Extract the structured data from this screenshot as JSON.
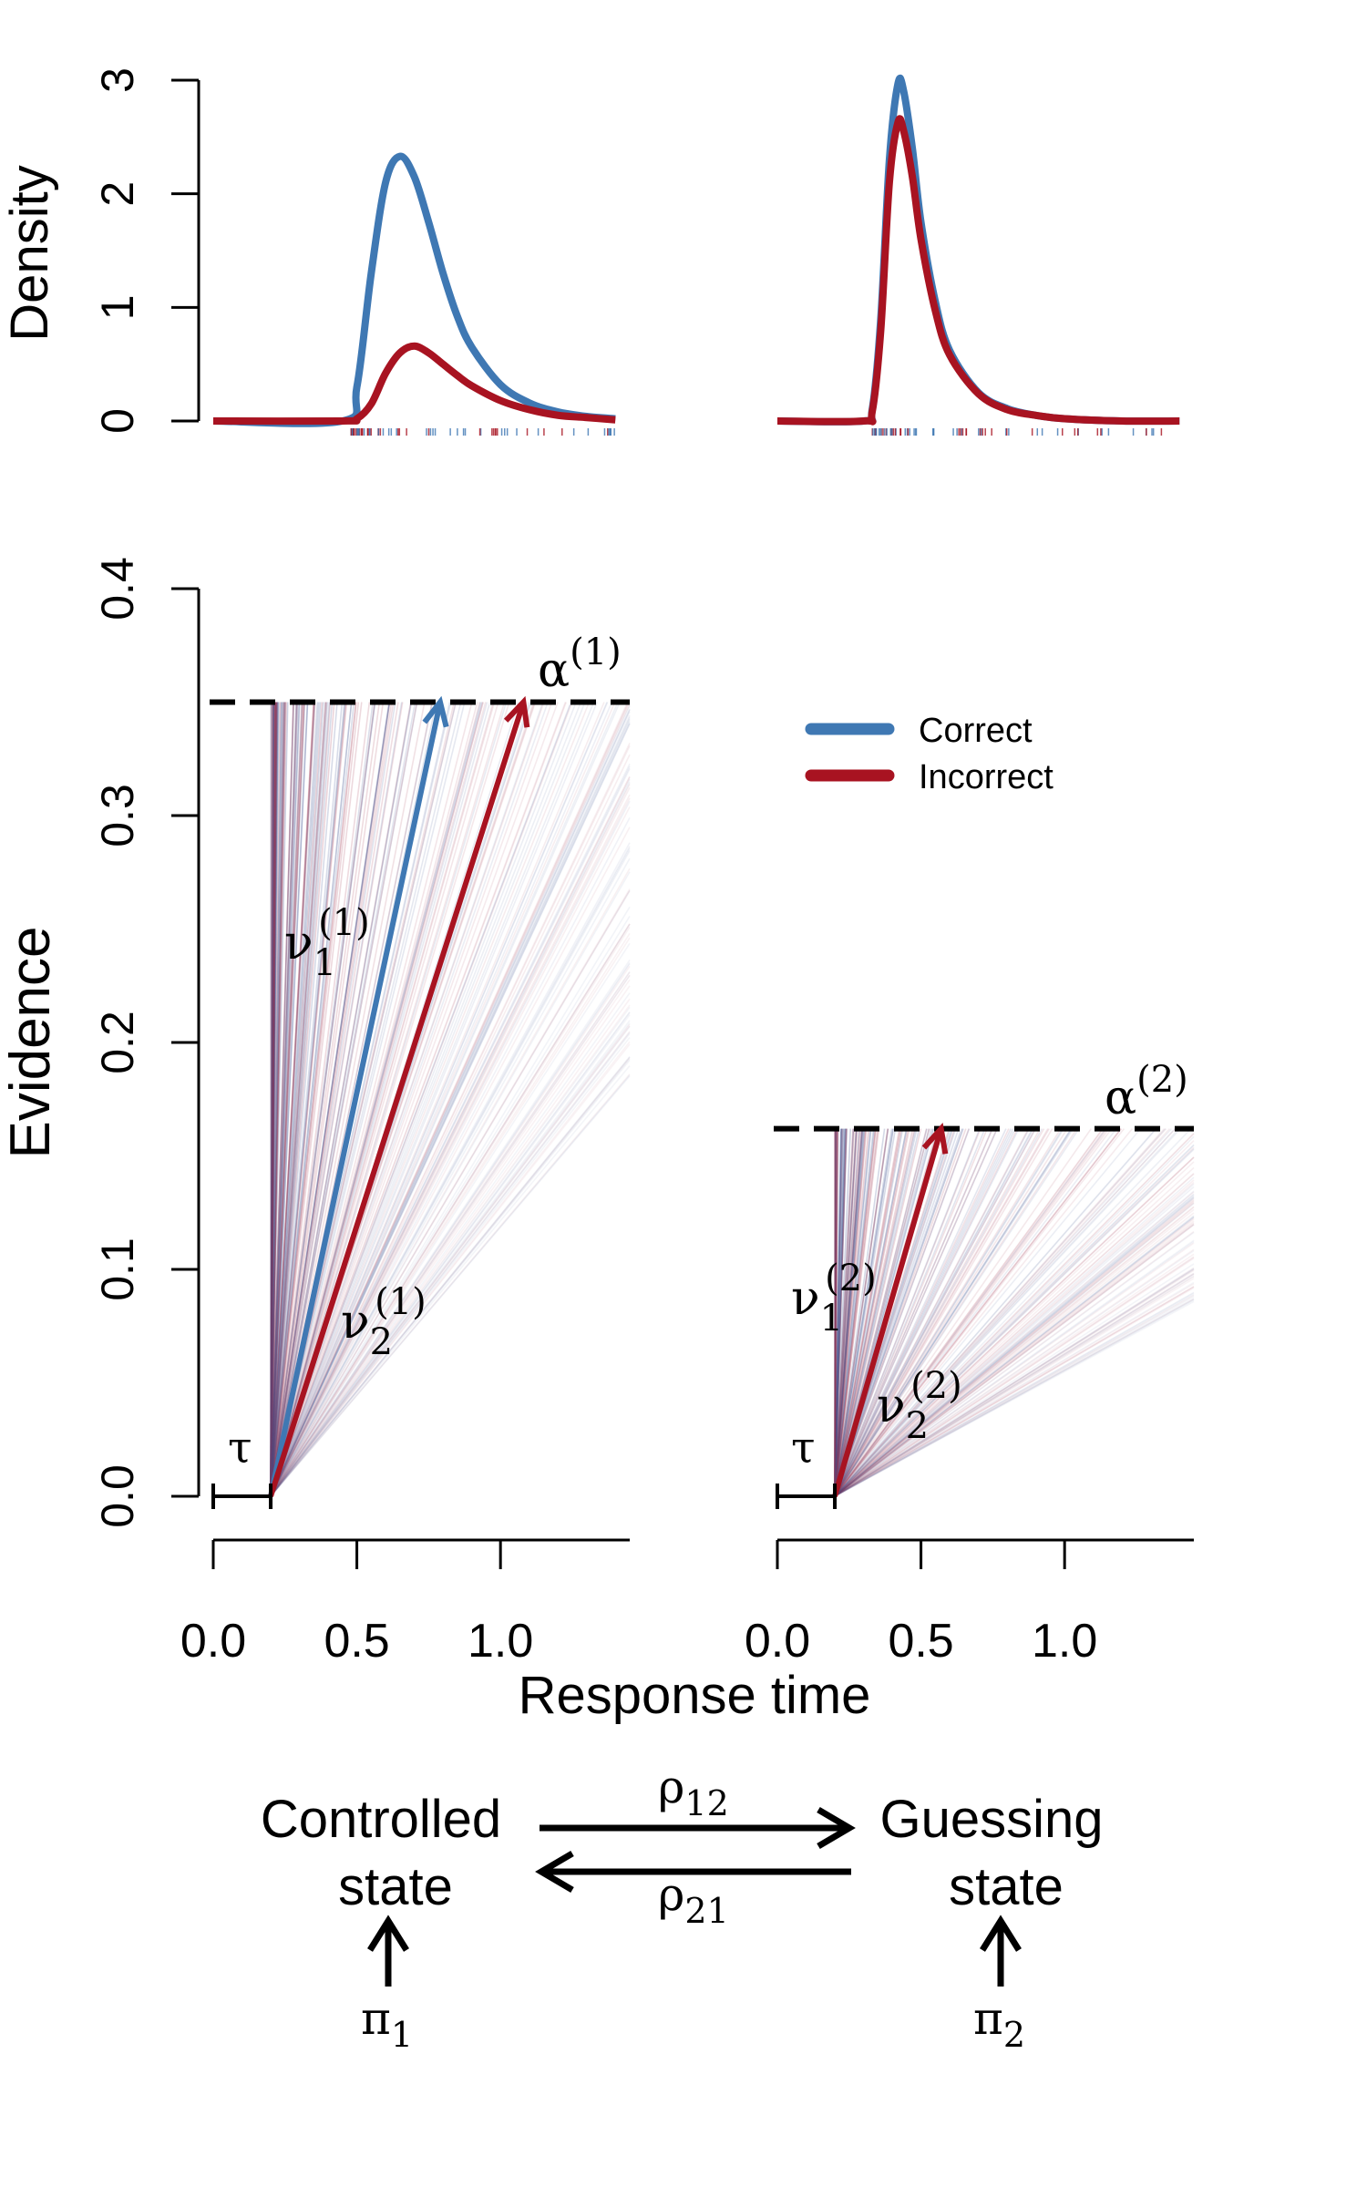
{
  "colors": {
    "correct": "#3f78b3",
    "incorrect": "#a81321",
    "threshold": "#000000"
  },
  "chart_data": [
    {
      "type": "line",
      "panel": "density-left",
      "ylabel": "Density",
      "ylim": [
        0,
        3
      ],
      "yticks": [
        "0",
        "1",
        "2",
        "3"
      ],
      "xlim": [
        0,
        1.45
      ],
      "series": [
        {
          "name": "Correct",
          "color": "#3f78b3",
          "x": [
            0.0,
            0.45,
            0.5,
            0.55,
            0.6,
            0.65,
            0.7,
            0.75,
            0.8,
            0.85,
            0.9,
            1.0,
            1.1,
            1.2,
            1.3,
            1.4
          ],
          "y": [
            0.0,
            0.0,
            0.3,
            1.3,
            2.1,
            2.33,
            2.15,
            1.75,
            1.3,
            0.92,
            0.65,
            0.32,
            0.16,
            0.08,
            0.04,
            0.02
          ]
        },
        {
          "name": "Incorrect",
          "color": "#a81321",
          "x": [
            0.0,
            0.45,
            0.5,
            0.55,
            0.6,
            0.65,
            0.7,
            0.75,
            0.8,
            0.85,
            0.9,
            1.0,
            1.1,
            1.2,
            1.3,
            1.4
          ],
          "y": [
            0.0,
            0.0,
            0.02,
            0.15,
            0.42,
            0.6,
            0.66,
            0.6,
            0.5,
            0.4,
            0.31,
            0.18,
            0.1,
            0.05,
            0.03,
            0.01
          ]
        }
      ],
      "rug": [
        0.48,
        1.45
      ]
    },
    {
      "type": "line",
      "panel": "density-right",
      "ylim": [
        0,
        3
      ],
      "xlim": [
        0,
        1.45
      ],
      "series": [
        {
          "name": "Correct",
          "color": "#3f78b3",
          "x": [
            0.0,
            0.3,
            0.33,
            0.36,
            0.39,
            0.42,
            0.44,
            0.47,
            0.5,
            0.55,
            0.6,
            0.7,
            0.8,
            0.9,
            1.0,
            1.2,
            1.4
          ],
          "y": [
            0.0,
            0.0,
            0.1,
            0.9,
            2.3,
            2.97,
            2.9,
            2.4,
            1.75,
            1.05,
            0.62,
            0.25,
            0.11,
            0.05,
            0.02,
            0.0,
            0.0
          ]
        },
        {
          "name": "Incorrect",
          "color": "#a81321",
          "x": [
            0.0,
            0.3,
            0.33,
            0.36,
            0.39,
            0.42,
            0.44,
            0.47,
            0.5,
            0.55,
            0.6,
            0.7,
            0.8,
            0.9,
            1.0,
            1.2,
            1.4
          ],
          "y": [
            0.0,
            0.0,
            0.08,
            0.8,
            2.1,
            2.63,
            2.55,
            2.15,
            1.6,
            0.97,
            0.58,
            0.24,
            0.1,
            0.05,
            0.02,
            0.0,
            0.0
          ]
        }
      ],
      "rug": [
        0.33,
        1.35
      ]
    },
    {
      "type": "line",
      "panel": "evidence-left",
      "ylabel": "Evidence",
      "xlabel": "Response time",
      "ylim": [
        0,
        0.4
      ],
      "xlim": [
        0,
        1.45
      ],
      "yticks": [
        "0.0",
        "0.1",
        "0.2",
        "0.3",
        "0.4"
      ],
      "xticks": [
        "0.0",
        "0.5",
        "1.0"
      ],
      "threshold": 0.35,
      "nondecision": 0.2,
      "arrows": [
        {
          "name": "Correct",
          "x": [
            0.2,
            0.79
          ],
          "y": [
            0.0,
            0.35
          ]
        },
        {
          "name": "Incorrect",
          "x": [
            0.2,
            1.08
          ],
          "y": [
            0.0,
            0.35
          ]
        }
      ]
    },
    {
      "type": "line",
      "panel": "evidence-right",
      "ylim": [
        0,
        0.4
      ],
      "xlim": [
        0,
        1.45
      ],
      "xticks": [
        "0.0",
        "0.5",
        "1.0"
      ],
      "threshold": 0.162,
      "nondecision": 0.2,
      "arrows": [
        {
          "name": "Incorrect",
          "x": [
            0.2,
            0.57
          ],
          "y": [
            0.0,
            0.162
          ]
        }
      ]
    }
  ],
  "legend": {
    "items": [
      {
        "label": "Correct"
      },
      {
        "label": "Incorrect"
      }
    ]
  },
  "annotations": {
    "alpha": "α",
    "alpha1_sup": "(1)",
    "alpha2_sup": "(2)",
    "nu": "ν",
    "sub1": "1",
    "sub2": "2",
    "sup1": "(1)",
    "sup2": "(2)",
    "tau": "τ"
  },
  "diagram": {
    "controlled_line1": "Controlled",
    "controlled_line2": "state",
    "guessing_line1": "Guessing",
    "guessing_line2": "state",
    "rho": "ρ",
    "rho12_sub": "12",
    "rho21_sub": "21",
    "pi": "π",
    "pi1_sub": "1",
    "pi2_sub": "2"
  }
}
